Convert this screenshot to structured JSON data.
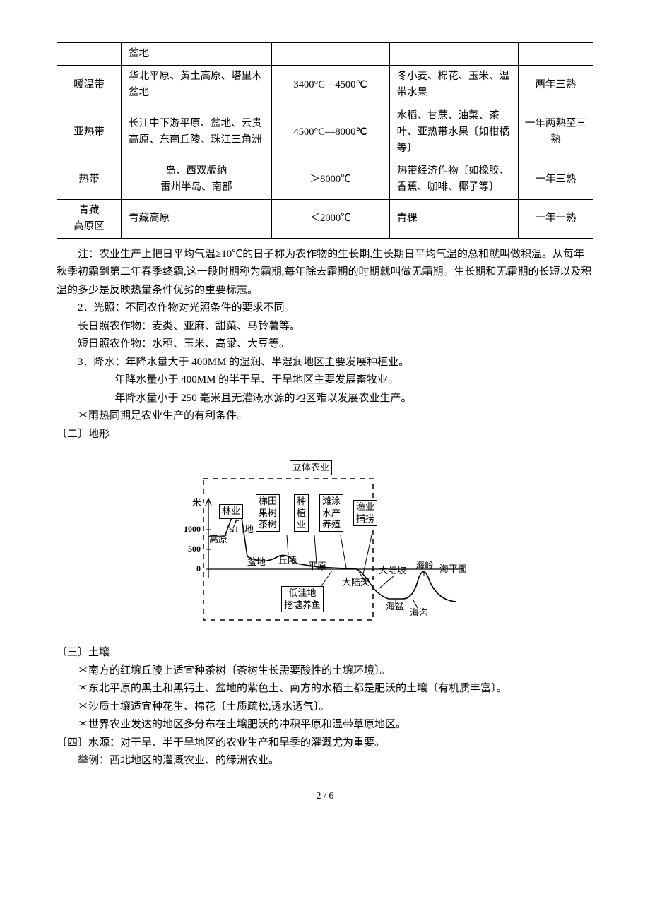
{
  "table": {
    "col_widths": [
      "12%",
      "28%",
      "22%",
      "24%",
      "14%"
    ],
    "rows": [
      {
        "zone": "",
        "areas": "盆地",
        "temp": "",
        "crops": "",
        "harvest": ""
      },
      {
        "zone": "暖温带",
        "areas": "华北平原、黄土高原、塔里木盆地",
        "temp": "3400°C—4500℃",
        "crops": "冬小麦、棉花、玉米、温带水果",
        "harvest": "两年三熟"
      },
      {
        "zone": "亚热带",
        "areas": "长江中下游平原、盆地、云贵高原、东南丘陵、珠江三角洲",
        "temp": "4500°C—8000℃",
        "crops": "水稻、甘蔗、油菜、茶叶、亚热带水果〔如柑橘等〕",
        "harvest": "一年两熟至三熟"
      },
      {
        "zone": "热带",
        "areas": "岛、西双版纳\n雷州半岛、南部",
        "temp": "＞8000℃",
        "crops": "热带经济作物〔如橡胶、香蕉、咖啡、椰子等〕",
        "harvest": "一年三熟"
      },
      {
        "zone": "青藏\n高原区",
        "areas": "青藏高原",
        "temp": "＜2000℃",
        "crops": "青稞",
        "harvest": "一年一熟"
      }
    ]
  },
  "paragraphs": {
    "note": "注：农业生产上把日平均气温≥10℃的日子称为农作物的生长期,生长期日平均气温的总和就叫做积温。从每年秋季初霜到第二年春季终霜,这一段时期称为霜期,每年除去霜期的时期就叫做无霜期。生长期和无霜期的长短以及积温的多少是反映热量条件优劣的重要标志。",
    "p2": "2．光照：不同农作物对光照条件的要求不同。",
    "p2a": "长日照农作物：麦类、亚麻、甜菜、马铃薯等。",
    "p2b": "短日照农作物：水稻、玉米、高粱、大豆等。",
    "p3": "3．降水：年降水量大于 400MM 的湿润、半湿润地区主要发展种植业。",
    "p3a": "年降水量小于 400MM 的半干旱、干旱地区主要发展畜牧业。",
    "p3b": "年降水量小于 250 毫米且无灌溉水源的地区难以发展农业生产。",
    "p_star1": "＊雨热同期是农业生产的有利条件。",
    "sec2": "〔二〕地形",
    "sec3": "〔三〕土壤",
    "soil1": "＊南方的红壤丘陵上适宜种茶树〔茶树生长需要酸性的土壤环境〕。",
    "soil2": "＊东北平原的黑土和黑钙土、盆地的紫色土、南方的水稻土都是肥沃的土壤〔有机质丰富〕。",
    "soil3": "＊沙质土壤适宜种花生、棉花〔土质疏松,透水透气〕。",
    "soil4": "＊世界农业发达的地区多分布在土壤肥沃的冲积平原和温带草原地区。",
    "sec4": "〔四〕水源：对干旱、半干旱地区的农业生产和旱季的灌溉尤为重要。",
    "sec4a": "举例：西北地区的灌溉农业、的绿洲农业。"
  },
  "diagram": {
    "title": "立体农业",
    "y_unit": "米",
    "y_ticks": [
      "1000",
      "500",
      "0"
    ],
    "boxes": {
      "forestry": "林业",
      "terrace": "梯田\n果树\n茶树",
      "planting": "种\n植\n业",
      "aquaculture": "滩涂\n水产\n养殖",
      "fishing": "渔业\n捕捞",
      "pond": "低洼地\n挖塘养鱼"
    },
    "labels": {
      "plateau": "高原",
      "mountain": "山地",
      "basin": "盆地",
      "hill": "丘陵",
      "plain": "平原",
      "shelf": "大陆架",
      "slope": "大陆坡",
      "ridge": "海岭",
      "sealevel": "海平面",
      "seabasin": "海盆",
      "trench": "海沟"
    },
    "dash_color": "#000",
    "line_color": "#000"
  },
  "footer": "2 / 6"
}
